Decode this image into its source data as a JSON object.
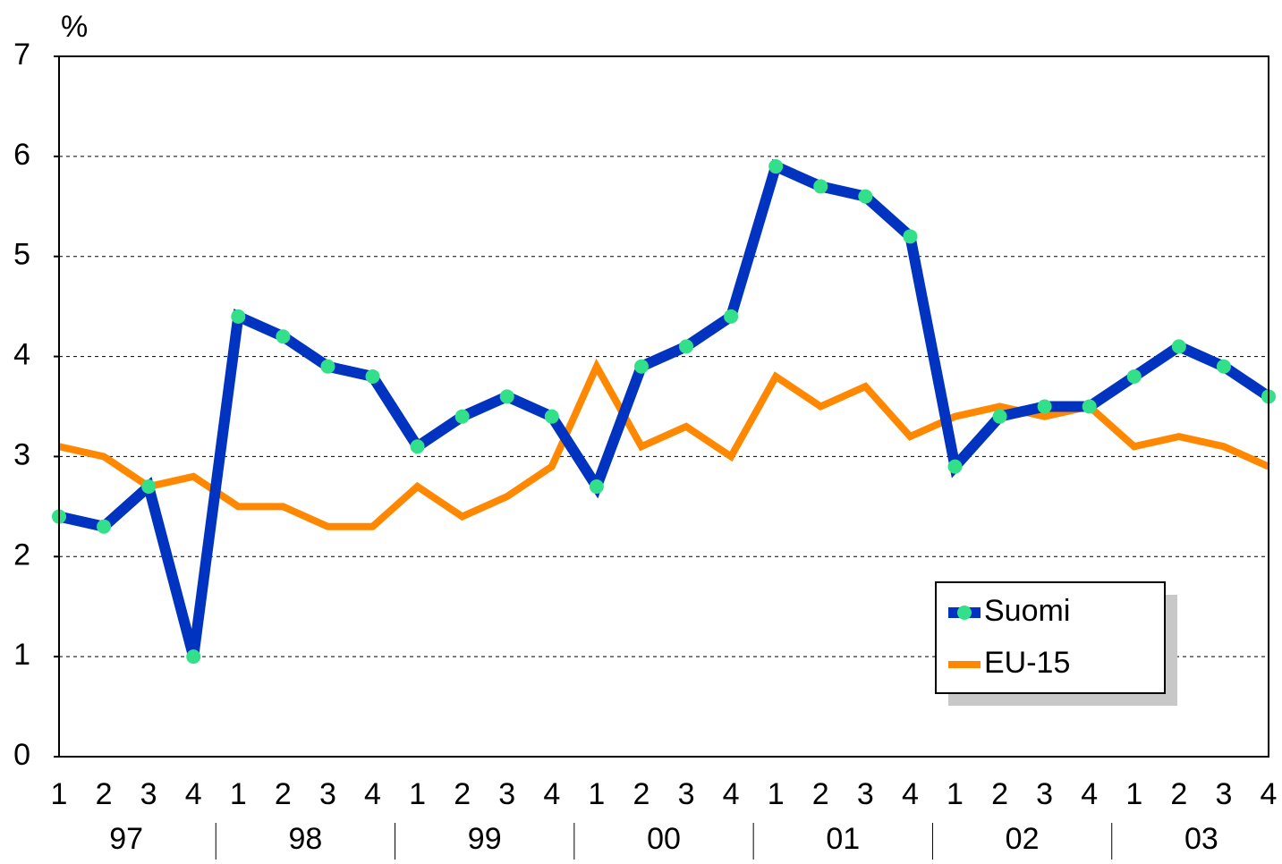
{
  "chart_data": {
    "type": "line",
    "y_label": "%",
    "categories": [
      "1",
      "2",
      "3",
      "4",
      "1",
      "2",
      "3",
      "4",
      "1",
      "2",
      "3",
      "4",
      "1",
      "2",
      "3",
      "4",
      "1",
      "2",
      "3",
      "4",
      "1",
      "2",
      "3",
      "4",
      "1",
      "2",
      "3",
      "4"
    ],
    "groups": [
      "97",
      "98",
      "99",
      "00",
      "01",
      "02",
      "03"
    ],
    "series": [
      {
        "name": "Suomi",
        "color": "#0033c0",
        "marker_color": "#33e08a",
        "values": [
          2.4,
          2.3,
          2.7,
          1.0,
          4.4,
          4.2,
          3.9,
          3.8,
          3.1,
          3.4,
          3.6,
          3.4,
          2.7,
          3.9,
          4.1,
          4.4,
          5.9,
          5.7,
          5.6,
          5.2,
          2.9,
          3.4,
          3.5,
          3.5,
          3.8,
          4.1,
          3.9,
          3.6
        ]
      },
      {
        "name": "EU-15",
        "color": "#ff8800",
        "values": [
          3.1,
          3.0,
          2.7,
          2.8,
          2.5,
          2.5,
          2.3,
          2.3,
          2.7,
          2.4,
          2.6,
          2.9,
          3.9,
          3.1,
          3.3,
          3.0,
          3.8,
          3.5,
          3.7,
          3.2,
          3.4,
          3.5,
          3.4,
          3.5,
          3.1,
          3.2,
          3.1,
          2.9
        ]
      }
    ],
    "ylim": [
      0,
      7
    ],
    "yticks": [
      0,
      1,
      2,
      3,
      4,
      5,
      6,
      7
    ],
    "grid": true,
    "legend": "lower right"
  }
}
